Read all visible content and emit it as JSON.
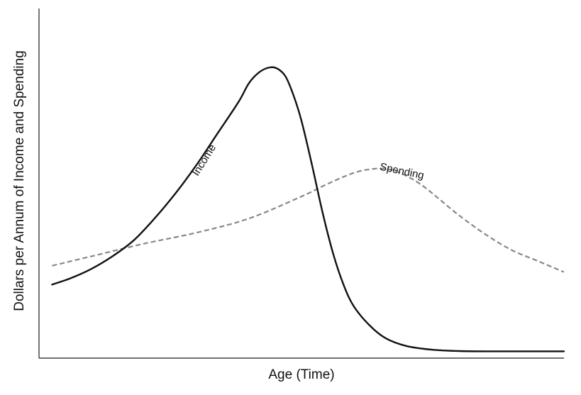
{
  "chart_data": {
    "type": "line",
    "title": "",
    "xlabel": "Age (Time)",
    "ylabel": "Dollars per Annum of Income and Spending",
    "xlim": [
      0,
      100
    ],
    "ylim": [
      0,
      100
    ],
    "grid": false,
    "legend": "none",
    "series": [
      {
        "name": "Income",
        "color": "#111111",
        "style": "solid",
        "x": [
          2.5,
          6,
          10,
          14,
          18,
          22,
          26,
          30,
          34,
          38,
          40,
          42,
          44,
          45.5,
          47,
          48.5,
          50,
          52,
          54,
          56,
          58,
          60,
          63,
          66,
          70,
          75,
          80,
          85,
          90,
          95,
          100
        ],
        "y": [
          22,
          24,
          27,
          31,
          36,
          43,
          51,
          60,
          70,
          80,
          86,
          89.5,
          91,
          90.5,
          88,
          82,
          74,
          60,
          45,
          32,
          22,
          15,
          9,
          5,
          2.5,
          1.3,
          0.9,
          0.8,
          0.8,
          0.8,
          0.8
        ]
      },
      {
        "name": "Spending",
        "color": "#888888",
        "style": "dashed",
        "x": [
          2.5,
          10,
          20,
          30,
          40,
          50,
          55,
          60,
          64,
          67,
          70,
          73,
          76,
          80,
          85,
          90,
          95,
          100
        ],
        "y": [
          28,
          31,
          35,
          38.5,
          43,
          50,
          54,
          57.5,
          58.8,
          58.5,
          56.5,
          53.5,
          49.5,
          44,
          38,
          33,
          29.5,
          26
        ]
      }
    ],
    "annotations": [
      {
        "text": "Income",
        "x": 32,
        "y": 61
      },
      {
        "text": "Spending",
        "x": 69,
        "y": 57
      }
    ]
  }
}
